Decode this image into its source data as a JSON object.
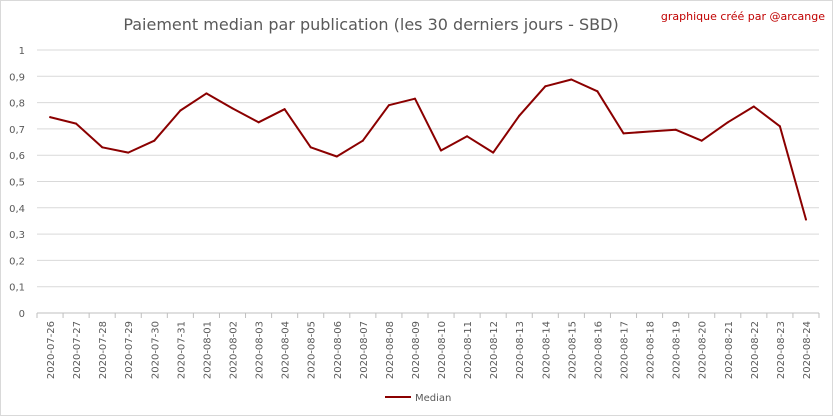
{
  "chart_data": {
    "type": "line",
    "title": "Paiement median par publication (les 30 derniers jours - SBD)",
    "credit": "graphique créé par @arcange",
    "xlabel": "",
    "ylabel": "",
    "ylim": [
      0,
      1
    ],
    "yticks": [
      "0",
      "0,1",
      "0,2",
      "0,3",
      "0,4",
      "0,5",
      "0,6",
      "0,7",
      "0,8",
      "0,9",
      "1"
    ],
    "grid": true,
    "legend_position": "bottom",
    "categories": [
      "2020-07-26",
      "2020-07-27",
      "2020-07-28",
      "2020-07-29",
      "2020-07-30",
      "2020-07-31",
      "2020-08-01",
      "2020-08-02",
      "2020-08-03",
      "2020-08-04",
      "2020-08-05",
      "2020-08-06",
      "2020-08-07",
      "2020-08-08",
      "2020-08-09",
      "2020-08-10",
      "2020-08-11",
      "2020-08-12",
      "2020-08-13",
      "2020-08-14",
      "2020-08-15",
      "2020-08-16",
      "2020-08-17",
      "2020-08-18",
      "2020-08-19",
      "2020-08-20",
      "2020-08-21",
      "2020-08-22",
      "2020-08-23",
      "2020-08-24"
    ],
    "series": [
      {
        "name": "Median",
        "color": "#8b0000",
        "values": [
          0.745,
          0.72,
          0.63,
          0.61,
          0.655,
          0.77,
          0.835,
          0.778,
          0.725,
          0.775,
          0.63,
          0.595,
          0.655,
          0.79,
          0.815,
          0.618,
          0.672,
          0.61,
          0.75,
          0.862,
          0.888,
          0.843,
          0.683,
          0.69,
          0.697,
          0.655,
          0.725,
          0.785,
          0.71,
          0.355
        ]
      }
    ]
  }
}
